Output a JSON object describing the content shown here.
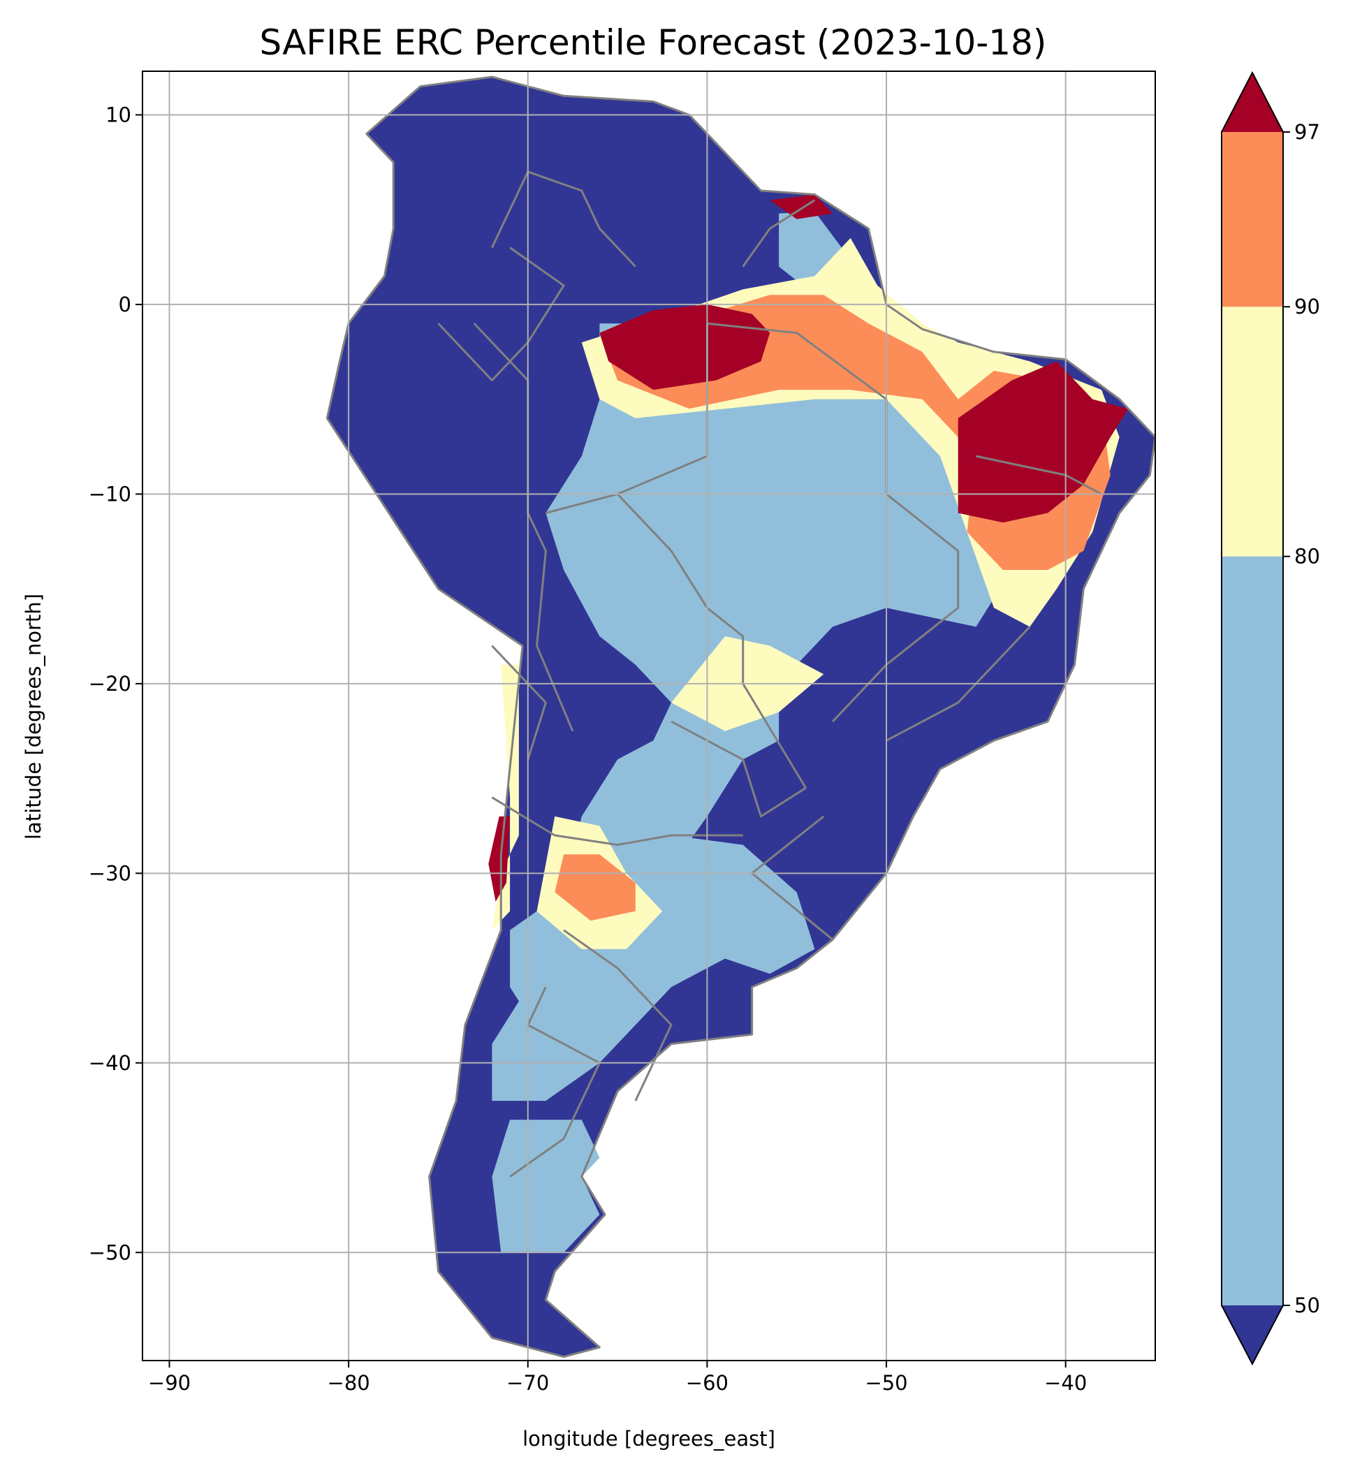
{
  "chart_data": {
    "type": "heatmap",
    "title": "SAFIRE ERC Percentile Forecast (2023-10-18)",
    "xlabel": "longitude [degrees_east]",
    "ylabel": "latitude [degrees_north]",
    "xlim": [
      -91.5,
      -35
    ],
    "ylim": [
      -55.7,
      12.3
    ],
    "x_ticks": [
      -90,
      -80,
      -70,
      -60,
      -50,
      -40
    ],
    "x_tick_labels": [
      "−90",
      "−80",
      "−70",
      "−60",
      "−50",
      "−40"
    ],
    "y_ticks": [
      10,
      0,
      -10,
      -20,
      -30,
      -40,
      -50
    ],
    "y_tick_labels": [
      "10",
      "0",
      "−10",
      "−20",
      "−30",
      "−40",
      "−50"
    ],
    "grid": true,
    "colorbar": {
      "orientation": "vertical",
      "placement": "right",
      "extend": "both",
      "boundaries": [
        50,
        80,
        90,
        97
      ],
      "tick_labels": [
        "50",
        "80",
        "90",
        "97"
      ],
      "colors": {
        "below_50": "#313695",
        "50_80": "#91bfdb",
        "80_90": "#fefbbf",
        "90_97": "#fc8d59",
        "above_97": "#a50026"
      }
    },
    "border_color": "#808080",
    "regions": [
      {
        "name": "below_50",
        "category": "below_50",
        "polygon": [
          [
            -79,
            9
          ],
          [
            -76,
            11.5
          ],
          [
            -72,
            12
          ],
          [
            -68,
            11
          ],
          [
            -63,
            10.7
          ],
          [
            -61,
            10
          ],
          [
            -59,
            8
          ],
          [
            -57,
            6
          ],
          [
            -54,
            5.8
          ],
          [
            -51,
            4
          ],
          [
            -50,
            0
          ],
          [
            -48,
            -1.3
          ],
          [
            -44,
            -2.5
          ],
          [
            -40,
            -2.9
          ],
          [
            -37,
            -5
          ],
          [
            -35,
            -7
          ],
          [
            -35.3,
            -9
          ],
          [
            -37,
            -11
          ],
          [
            -39,
            -15
          ],
          [
            -39.5,
            -19
          ],
          [
            -41,
            -22
          ],
          [
            -44,
            -23
          ],
          [
            -47,
            -24.5
          ],
          [
            -48.5,
            -27
          ],
          [
            -50,
            -30
          ],
          [
            -53,
            -33.5
          ],
          [
            -55,
            -35
          ],
          [
            -57.5,
            -36
          ],
          [
            -57.5,
            -38.5
          ],
          [
            -62,
            -39
          ],
          [
            -65,
            -41.5
          ],
          [
            -67,
            -46
          ],
          [
            -65.7,
            -48
          ],
          [
            -68.5,
            -51
          ],
          [
            -69,
            -52.5
          ],
          [
            -66,
            -55
          ],
          [
            -68,
            -55.5
          ],
          [
            -72,
            -54.5
          ],
          [
            -75,
            -51
          ],
          [
            -75.5,
            -46
          ],
          [
            -74,
            -42
          ],
          [
            -73.5,
            -38
          ],
          [
            -71.5,
            -33
          ],
          [
            -71.5,
            -29
          ],
          [
            -70.3,
            -18
          ],
          [
            -75,
            -15
          ],
          [
            -81.2,
            -6
          ],
          [
            -80.5,
            -3
          ],
          [
            -80,
            -1
          ],
          [
            -78,
            1.5
          ],
          [
            -77.5,
            4
          ],
          [
            -77.5,
            7.5
          ]
        ]
      },
      {
        "name": "central_50_80",
        "category": "50_80",
        "polygon": [
          [
            -61,
            -4
          ],
          [
            -55,
            -4
          ],
          [
            -50,
            -5
          ],
          [
            -46,
            -7
          ],
          [
            -45,
            -12
          ],
          [
            -44,
            -15.5
          ],
          [
            -45,
            -17
          ],
          [
            -50,
            -16
          ],
          [
            -53,
            -17
          ],
          [
            -56,
            -20
          ],
          [
            -56,
            -23
          ],
          [
            -58,
            -24
          ],
          [
            -60,
            -27
          ],
          [
            -63,
            -31
          ],
          [
            -66,
            -34
          ],
          [
            -68,
            -36
          ],
          [
            -70,
            -37.5
          ],
          [
            -71,
            -36
          ],
          [
            -71,
            -33
          ],
          [
            -68,
            -31
          ],
          [
            -67,
            -27
          ],
          [
            -65,
            -24
          ],
          [
            -63,
            -23
          ],
          [
            -62,
            -21
          ],
          [
            -64,
            -19
          ],
          [
            -66,
            -17.5
          ],
          [
            -68,
            -14
          ],
          [
            -69,
            -11
          ],
          [
            -67,
            -8
          ],
          [
            -66,
            -5
          ],
          [
            -66,
            -1
          ],
          [
            -64,
            -1
          ]
        ]
      },
      {
        "name": "la_plata_50_80",
        "category": "50_80",
        "polygon": [
          [
            -66,
            -29
          ],
          [
            -62,
            -28
          ],
          [
            -58,
            -28.5
          ],
          [
            -55,
            -31
          ],
          [
            -54,
            -34
          ],
          [
            -56.5,
            -35.3
          ],
          [
            -59,
            -34.5
          ],
          [
            -62,
            -36
          ],
          [
            -64,
            -38
          ],
          [
            -66,
            -40
          ],
          [
            -69,
            -42
          ],
          [
            -72,
            -42
          ],
          [
            -72,
            -39
          ],
          [
            -70,
            -36
          ]
        ]
      },
      {
        "name": "patagonia_50_80",
        "category": "50_80",
        "polygon": [
          [
            -71,
            -43
          ],
          [
            -67,
            -43
          ],
          [
            -66,
            -45
          ],
          [
            -67,
            -46
          ],
          [
            -66,
            -48
          ],
          [
            -68,
            -50
          ],
          [
            -71.5,
            -50
          ],
          [
            -72,
            -46
          ]
        ]
      },
      {
        "name": "guiana_50_80",
        "category": "50_80",
        "polygon": [
          [
            -56,
            4.8
          ],
          [
            -54,
            4.9
          ],
          [
            -52.5,
            3
          ],
          [
            -51.5,
            1
          ],
          [
            -54,
            0.5
          ],
          [
            -56,
            2
          ]
        ]
      },
      {
        "name": "north_80_90",
        "category": "80_90",
        "polygon": [
          [
            -67,
            -2
          ],
          [
            -62,
            -0.5
          ],
          [
            -58,
            0.8
          ],
          [
            -54,
            1.5
          ],
          [
            -52,
            3.5
          ],
          [
            -50.5,
            1
          ],
          [
            -48,
            -1
          ],
          [
            -46,
            -2
          ],
          [
            -42,
            -3
          ],
          [
            -38,
            -4.5
          ],
          [
            -37,
            -7
          ],
          [
            -38.5,
            -12
          ],
          [
            -40.5,
            -15
          ],
          [
            -42,
            -17
          ],
          [
            -44,
            -16
          ],
          [
            -45.5,
            -12
          ],
          [
            -47,
            -8
          ],
          [
            -50,
            -5
          ],
          [
            -54,
            -5
          ],
          [
            -59,
            -5.5
          ],
          [
            -64,
            -6
          ],
          [
            -66,
            -5
          ]
        ]
      },
      {
        "name": "cerrado_80_90",
        "category": "80_90",
        "polygon": [
          [
            -59,
            -17.5
          ],
          [
            -56.5,
            -18
          ],
          [
            -53.5,
            -19.5
          ],
          [
            -56,
            -21.5
          ],
          [
            -59,
            -22.5
          ],
          [
            -62,
            -21
          ]
        ]
      },
      {
        "name": "andes_80_90",
        "category": "80_90",
        "polygon": [
          [
            -71.5,
            -19
          ],
          [
            -70.5,
            -19
          ],
          [
            -70.5,
            -28
          ],
          [
            -71.5,
            -30
          ],
          [
            -72,
            -33
          ],
          [
            -71,
            -32
          ],
          [
            -71,
            -26
          ]
        ]
      },
      {
        "name": "cordoba_80_90",
        "category": "80_90",
        "polygon": [
          [
            -68.5,
            -27
          ],
          [
            -66,
            -27.5
          ],
          [
            -64.5,
            -30
          ],
          [
            -62.5,
            -32
          ],
          [
            -64.5,
            -34
          ],
          [
            -67,
            -34
          ],
          [
            -69.5,
            -32
          ]
        ]
      },
      {
        "name": "amazon_90_97",
        "category": "90_97",
        "polygon": [
          [
            -66,
            -1.5
          ],
          [
            -60,
            -0.5
          ],
          [
            -56.5,
            0.5
          ],
          [
            -53.5,
            0.5
          ],
          [
            -51,
            -1
          ],
          [
            -48,
            -2.5
          ],
          [
            -46,
            -5
          ],
          [
            -44,
            -3.5
          ],
          [
            -41,
            -4
          ],
          [
            -38,
            -5.5
          ],
          [
            -37.5,
            -9
          ],
          [
            -39,
            -13
          ],
          [
            -41,
            -14
          ],
          [
            -43.5,
            -14
          ],
          [
            -45.5,
            -12
          ],
          [
            -45,
            -8
          ],
          [
            -48,
            -5
          ],
          [
            -52,
            -4.5
          ],
          [
            -56,
            -4.5
          ],
          [
            -61,
            -5.5
          ],
          [
            -65,
            -4
          ]
        ]
      },
      {
        "name": "cordoba_90_97",
        "category": "90_97",
        "polygon": [
          [
            -68,
            -29
          ],
          [
            -66,
            -29
          ],
          [
            -64,
            -30.5
          ],
          [
            -64,
            -32
          ],
          [
            -66.5,
            -32.5
          ],
          [
            -68.5,
            -31
          ]
        ]
      },
      {
        "name": "amazon_above_97",
        "category": "above_97",
        "polygon": [
          [
            -66,
            -1.5
          ],
          [
            -63,
            -0.3
          ],
          [
            -60,
            0
          ],
          [
            -57.5,
            -0.5
          ],
          [
            -56.5,
            -1.5
          ],
          [
            -57,
            -3
          ],
          [
            -59.5,
            -4
          ],
          [
            -63,
            -4.5
          ],
          [
            -65.5,
            -3
          ]
        ]
      },
      {
        "name": "northeast_above_97",
        "category": "above_97",
        "polygon": [
          [
            -46,
            -6
          ],
          [
            -43,
            -4
          ],
          [
            -40.5,
            -3
          ],
          [
            -38.5,
            -5
          ],
          [
            -36.5,
            -5.5
          ],
          [
            -37.5,
            -7
          ],
          [
            -39,
            -9.5
          ],
          [
            -41,
            -11
          ],
          [
            -43.5,
            -11.5
          ],
          [
            -46,
            -11
          ]
        ]
      },
      {
        "name": "chile_above_97",
        "category": "above_97",
        "polygon": [
          [
            -71.6,
            -27
          ],
          [
            -71,
            -27
          ],
          [
            -71.2,
            -30.5
          ],
          [
            -71.8,
            -31.5
          ],
          [
            -72.2,
            -29.5
          ]
        ]
      },
      {
        "name": "guiana_above_97",
        "category": "above_97",
        "polygon": [
          [
            -56.5,
            5.5
          ],
          [
            -54,
            5.8
          ],
          [
            -53,
            4.8
          ],
          [
            -55,
            4.5
          ]
        ]
      }
    ],
    "borders": [
      [
        [
          -73,
          -1
        ],
        [
          -70,
          -4
        ],
        [
          -70,
          -11
        ],
        [
          -69,
          -13
        ],
        [
          -69.5,
          -18
        ],
        [
          -67.5,
          -22.5
        ]
      ],
      [
        [
          -60,
          -1
        ],
        [
          -60,
          -8
        ],
        [
          -65,
          -10
        ],
        [
          -69,
          -11
        ]
      ],
      [
        [
          -65,
          -10
        ],
        [
          -62,
          -13
        ],
        [
          -60,
          -16
        ],
        [
          -58,
          -17.5
        ],
        [
          -58,
          -20
        ]
      ],
      [
        [
          -58,
          -20
        ],
        [
          -54.5,
          -25.5
        ]
      ],
      [
        [
          -62,
          -22
        ],
        [
          -58,
          -24
        ],
        [
          -57,
          -27
        ],
        [
          -54.5,
          -25.5
        ]
      ],
      [
        [
          -53.5,
          -27
        ],
        [
          -57.5,
          -30
        ],
        [
          -53,
          -33.5
        ]
      ],
      [
        [
          -60,
          -1
        ],
        [
          -55,
          -1.5
        ],
        [
          -50,
          -5
        ]
      ],
      [
        [
          -50,
          -5
        ],
        [
          -50,
          -10
        ],
        [
          -46,
          -13
        ],
        [
          -46,
          -16
        ],
        [
          -50,
          -19
        ],
        [
          -53,
          -22
        ]
      ],
      [
        [
          -45,
          -8
        ],
        [
          -40,
          -9
        ],
        [
          -38,
          -10
        ]
      ],
      [
        [
          -72,
          -26
        ],
        [
          -68.5,
          -28
        ],
        [
          -65,
          -28.5
        ],
        [
          -62,
          -28
        ],
        [
          -58,
          -28
        ]
      ],
      [
        [
          -68,
          -33
        ],
        [
          -65,
          -35
        ],
        [
          -62,
          -38
        ],
        [
          -64,
          -42
        ]
      ],
      [
        [
          -69,
          -36
        ],
        [
          -70,
          -38
        ],
        [
          -66,
          -40
        ],
        [
          -68,
          -44
        ],
        [
          -71,
          -46
        ]
      ],
      [
        [
          -72,
          3
        ],
        [
          -70,
          7
        ],
        [
          -67,
          6
        ],
        [
          -66,
          4
        ],
        [
          -64,
          2
        ]
      ],
      [
        [
          -58,
          2
        ],
        [
          -56.5,
          4
        ],
        [
          -54,
          5.5
        ]
      ],
      [
        [
          -75,
          -1
        ],
        [
          -72,
          -4
        ],
        [
          -70,
          -2
        ],
        [
          -68,
          1
        ],
        [
          -71,
          3
        ]
      ],
      [
        [
          -72,
          -18
        ],
        [
          -69,
          -21
        ],
        [
          -70,
          -24
        ]
      ],
      [
        [
          -50,
          -23
        ],
        [
          -46,
          -21
        ],
        [
          -44,
          -19
        ],
        [
          -42,
          -17
        ]
      ]
    ]
  }
}
